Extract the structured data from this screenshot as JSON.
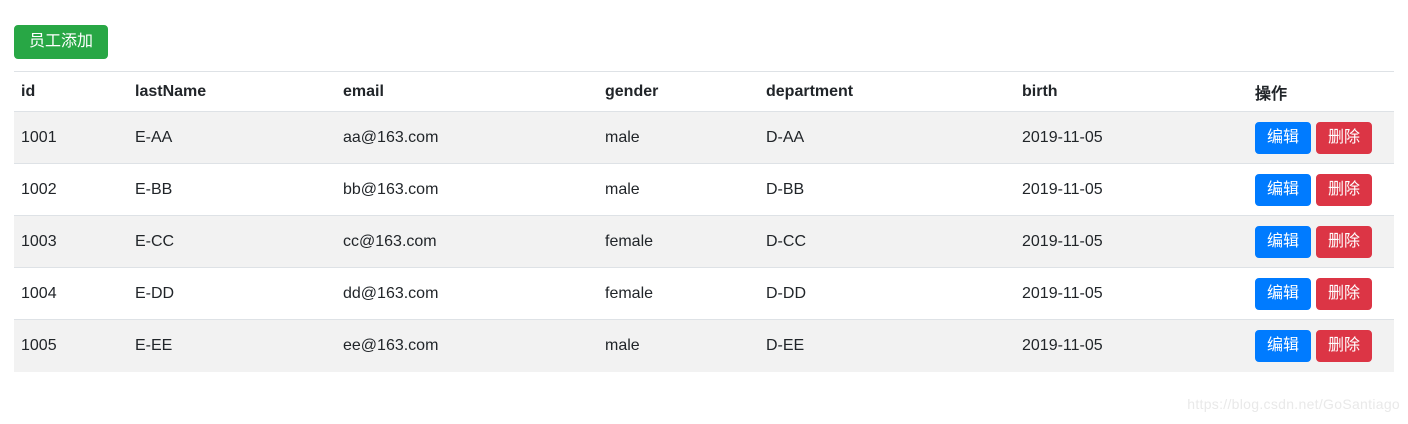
{
  "toolbar": {
    "add_button_label": "员工添加"
  },
  "table": {
    "columns": [
      {
        "key": "id",
        "label": "id"
      },
      {
        "key": "lastName",
        "label": "lastName"
      },
      {
        "key": "email",
        "label": "email"
      },
      {
        "key": "gender",
        "label": "gender"
      },
      {
        "key": "department",
        "label": "department"
      },
      {
        "key": "birth",
        "label": "birth"
      },
      {
        "key": "ops",
        "label": "操作"
      }
    ],
    "rows": [
      {
        "id": "1001",
        "lastName": "E-AA",
        "email": "aa@163.com",
        "gender": "male",
        "department": "D-AA",
        "birth": "2019-11-05"
      },
      {
        "id": "1002",
        "lastName": "E-BB",
        "email": "bb@163.com",
        "gender": "male",
        "department": "D-BB",
        "birth": "2019-11-05"
      },
      {
        "id": "1003",
        "lastName": "E-CC",
        "email": "cc@163.com",
        "gender": "female",
        "department": "D-CC",
        "birth": "2019-11-05"
      },
      {
        "id": "1004",
        "lastName": "E-DD",
        "email": "dd@163.com",
        "gender": "female",
        "department": "D-DD",
        "birth": "2019-11-05"
      },
      {
        "id": "1005",
        "lastName": "E-EE",
        "email": "ee@163.com",
        "gender": "male",
        "department": "D-EE",
        "birth": "2019-11-05"
      }
    ],
    "actions": {
      "edit_label": "编辑",
      "delete_label": "删除"
    }
  },
  "watermark_text": "https://blog.csdn.net/GoSantiago",
  "colors": {
    "add_button": "#28a745",
    "edit_button": "#007bff",
    "delete_button": "#dc3545",
    "stripe": "#f2f2f2",
    "border": "#dee2e6",
    "text": "#212529"
  }
}
